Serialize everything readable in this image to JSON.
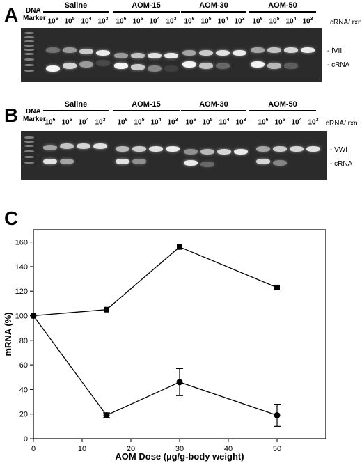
{
  "panels": {
    "a": {
      "letter": "A",
      "marker_label_line1": "DNA",
      "marker_label_line2": "Marker",
      "groups": [
        "Saline",
        "AOM-15",
        "AOM-30",
        "AOM-50"
      ],
      "lane_base": "10",
      "lane_exponents": [
        "6",
        "5",
        "4",
        "3"
      ],
      "unit_label": "cRNA/ rxn",
      "band_labels": [
        "- fVIII",
        "- cRNA"
      ]
    },
    "b": {
      "letter": "B",
      "marker_label_line1": "DNA",
      "marker_label_line2": "Marker",
      "groups": [
        "Saline",
        "AOM-15",
        "AOM-30",
        "AOM-50"
      ],
      "lane_base": "10",
      "lane_exponents": [
        "6",
        "5",
        "4",
        "3"
      ],
      "unit_label": "cRNA/ rxn",
      "band_labels": [
        "- VWf",
        "- cRNA"
      ]
    },
    "c": {
      "letter": "C"
    }
  },
  "chart_data": {
    "type": "line",
    "title": "",
    "xlabel": "AOM Dose (µg/g-body weight)",
    "ylabel": "mRNA (%)",
    "xlim": [
      0,
      60
    ],
    "ylim": [
      0,
      170
    ],
    "xticks": [
      0,
      10,
      20,
      30,
      40,
      50
    ],
    "yticks": [
      0,
      20,
      40,
      60,
      80,
      100,
      120,
      140,
      160
    ],
    "grid": false,
    "legend": "none",
    "series": [
      {
        "marker": "square",
        "x": [
          0,
          15,
          30,
          50
        ],
        "y": [
          100,
          105,
          156,
          123
        ],
        "yerr": [
          0,
          0,
          0,
          0
        ]
      },
      {
        "marker": "circle",
        "x": [
          0,
          15,
          30,
          50
        ],
        "y": [
          100,
          19,
          46,
          19
        ],
        "yerr": [
          0,
          2,
          11,
          9
        ]
      }
    ]
  }
}
